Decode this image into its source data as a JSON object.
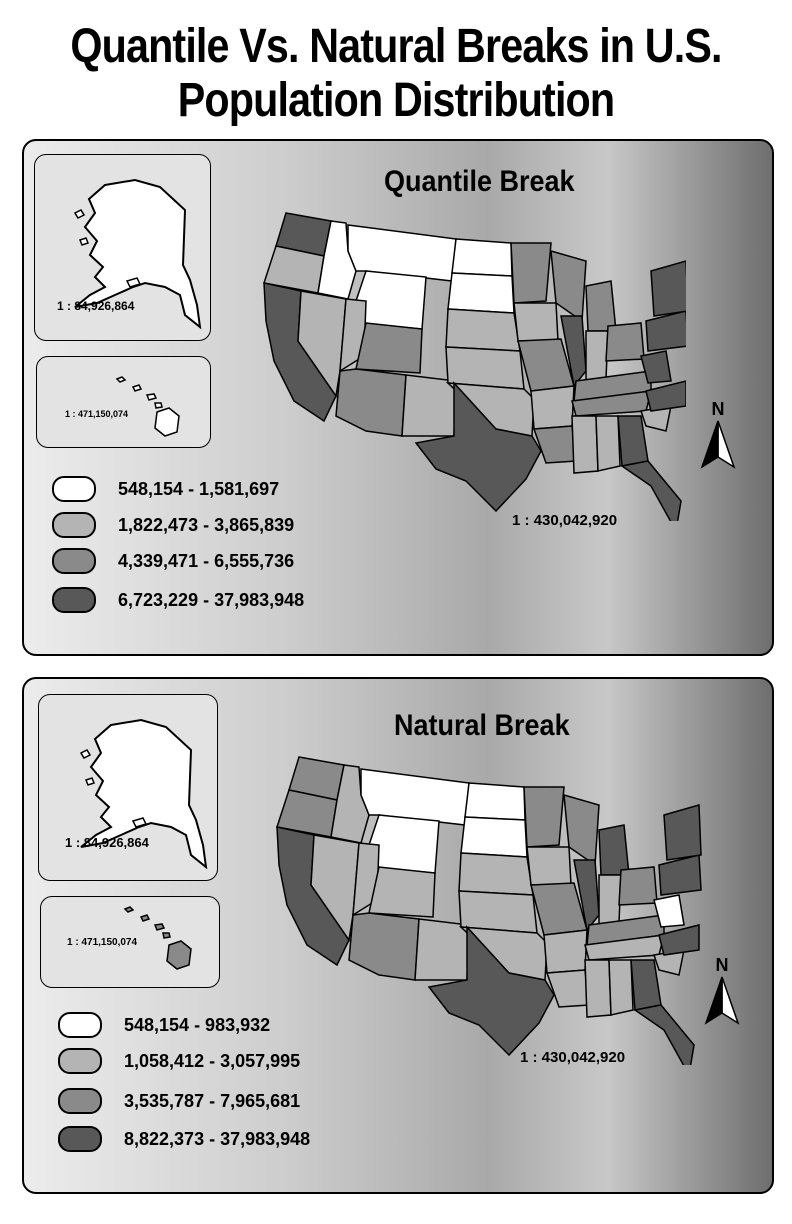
{
  "title": {
    "line1": "Quantile Vs. Natural Breaks in U.S.",
    "line2": "Population Distribution"
  },
  "panels": [
    {
      "heading": "Quantile Break",
      "alaska_scale": "1 : 84,926,864",
      "hawaii_scale": "1 : 471,150,074",
      "main_scale": "1 : 430,042,920",
      "north_label": "N",
      "legend": [
        {
          "label": "548,154 - 1,581,697",
          "color": "#ffffff"
        },
        {
          "label": "1,822,473 - 3,865,839",
          "color": "#b4b4b4"
        },
        {
          "label": "4,339,471 - 6,555,736",
          "color": "#8a8a8a"
        },
        {
          "label": "6,723,229 - 37,983,948",
          "color": "#585858"
        }
      ]
    },
    {
      "heading": "Natural Break",
      "alaska_scale": "1 : 84,926,864",
      "hawaii_scale": "1 : 471,150,074",
      "main_scale": "1 : 430,042,920",
      "north_label": "N",
      "legend": [
        {
          "label": "548,154 - 983,932",
          "color": "#ffffff"
        },
        {
          "label": "1,058,412 - 3,057,995",
          "color": "#b4b4b4"
        },
        {
          "label": "3,535,787 - 7,965,681",
          "color": "#8a8a8a"
        },
        {
          "label": "8,822,373 - 37,983,948",
          "color": "#585858"
        }
      ]
    }
  ]
}
